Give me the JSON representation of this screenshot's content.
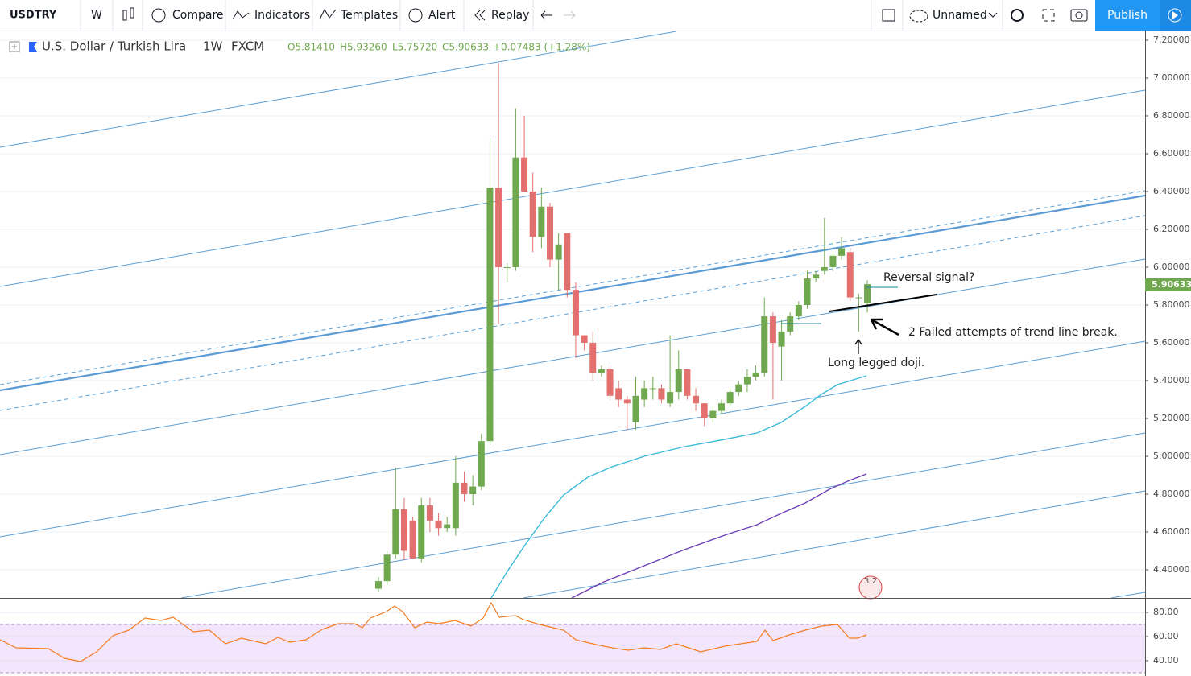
{
  "toolbar": {
    "symbol": "USDTRY",
    "interval": "W",
    "buttons": [
      "Compare",
      "Indicators",
      "Templates",
      "Alert",
      "Replay"
    ],
    "layout_name": "Unnamed",
    "publish": "Publish"
  },
  "legend": {
    "name": "U.S. Dollar / Turkish Lira",
    "interval": "1W",
    "source": "FXCM",
    "open": "O5.81410",
    "high": "H5.93260",
    "low": "L5.75720",
    "close": "C5.90633",
    "change": "+0.07483 (+1.28%)"
  },
  "chart_data": {
    "type": "candlestick",
    "up_color": "#6fa84f",
    "down_color": "#e2706f",
    "open": [
      4.3,
      4.34,
      4.48,
      4.72,
      4.66,
      4.46,
      4.74,
      4.66,
      4.62,
      4.62,
      4.86,
      4.8,
      4.84,
      5.08,
      6.42,
      6.0,
      6.0,
      6.58,
      6.4,
      6.16,
      6.32,
      6.04,
      6.18,
      5.88,
      5.64,
      5.6,
      5.44,
      5.46,
      5.36,
      5.3,
      5.18,
      5.3,
      5.36,
      5.36,
      5.28,
      5.34,
      5.46,
      5.32,
      5.28,
      5.2,
      5.24,
      5.28,
      5.34,
      5.38,
      5.42,
      5.44,
      5.74,
      5.58,
      5.66,
      5.74,
      5.8,
      5.94,
      5.98,
      6.0,
      6.06,
      6.08,
      5.84,
      5.81
    ],
    "high": [
      4.36,
      4.5,
      4.94,
      4.78,
      4.68,
      4.78,
      4.78,
      4.7,
      4.68,
      5.0,
      4.92,
      4.9,
      5.12,
      6.68,
      7.08,
      6.02,
      6.84,
      6.8,
      6.5,
      6.42,
      6.34,
      6.18,
      6.18,
      5.92,
      5.64,
      5.66,
      5.48,
      5.48,
      5.4,
      5.32,
      5.42,
      5.4,
      5.42,
      5.38,
      5.64,
      5.56,
      5.46,
      5.36,
      5.28,
      5.26,
      5.3,
      5.36,
      5.4,
      5.46,
      5.48,
      5.84,
      5.76,
      5.72,
      5.76,
      5.82,
      5.98,
      5.98,
      6.26,
      6.14,
      6.16,
      6.1,
      5.86,
      5.93
    ],
    "low": [
      4.28,
      4.32,
      4.46,
      4.45,
      4.46,
      4.44,
      4.6,
      4.58,
      4.6,
      4.58,
      4.76,
      4.74,
      4.82,
      5.06,
      5.7,
      5.92,
      5.98,
      6.4,
      6.08,
      6.1,
      6.0,
      5.88,
      5.84,
      5.52,
      5.56,
      5.4,
      5.42,
      5.3,
      5.26,
      5.14,
      5.14,
      5.26,
      5.3,
      5.28,
      5.26,
      5.3,
      5.3,
      5.24,
      5.16,
      5.18,
      5.22,
      5.26,
      5.32,
      5.34,
      5.4,
      5.42,
      5.3,
      5.4,
      5.64,
      5.72,
      5.78,
      5.92,
      5.96,
      5.98,
      6.04,
      5.82,
      5.66,
      5.76
    ],
    "close": [
      4.34,
      4.48,
      4.72,
      4.5,
      4.46,
      4.74,
      4.66,
      4.62,
      4.64,
      4.86,
      4.8,
      4.84,
      5.08,
      6.42,
      6.0,
      6.0,
      6.58,
      6.4,
      6.16,
      6.32,
      6.04,
      6.12,
      5.88,
      5.64,
      5.6,
      5.44,
      5.46,
      5.32,
      5.3,
      5.28,
      5.32,
      5.36,
      5.36,
      5.3,
      5.34,
      5.46,
      5.32,
      5.28,
      5.2,
      5.24,
      5.28,
      5.34,
      5.38,
      5.42,
      5.44,
      5.74,
      5.6,
      5.66,
      5.74,
      5.8,
      5.94,
      5.96,
      6.0,
      6.06,
      6.1,
      5.84,
      5.84,
      5.91
    ],
    "ylim": [
      4.251,
      7.251
    ],
    "yticks": [
      {
        "value": 7.2,
        "label": "7.20000"
      },
      {
        "value": 7.0,
        "label": "7.00000"
      },
      {
        "value": 6.8,
        "label": "6.80000"
      },
      {
        "value": 6.6,
        "label": "6.60000"
      },
      {
        "value": 6.4,
        "label": "6.40000"
      },
      {
        "value": 6.2,
        "label": "6.20000"
      },
      {
        "value": 6.0,
        "label": "6.00000"
      },
      {
        "value": 5.8,
        "label": "5.80000"
      },
      {
        "value": 5.6,
        "label": "5.60000"
      },
      {
        "value": 5.4,
        "label": "5.40000"
      },
      {
        "value": 5.2,
        "label": "5.20000"
      },
      {
        "value": 5.0,
        "label": "5.00000"
      },
      {
        "value": 4.8,
        "label": "4.80000"
      },
      {
        "value": 4.6,
        "label": "4.60000"
      },
      {
        "value": 4.4,
        "label": "4.40000"
      }
    ],
    "last_price": {
      "value": 5.90633,
      "label": "5.90633"
    },
    "grid": true,
    "annotations": [
      "Reversal signal?",
      "2 Failed attempts of trend line break.",
      "Long legged doji."
    ],
    "badge": "3 2",
    "rsi": {
      "ylim": [
        27.3,
        90.7
      ],
      "yticks": [
        {
          "value": 80,
          "label": "80.00"
        },
        {
          "value": 60,
          "label": "60.00"
        },
        {
          "value": 40,
          "label": "40.00"
        }
      ]
    }
  }
}
